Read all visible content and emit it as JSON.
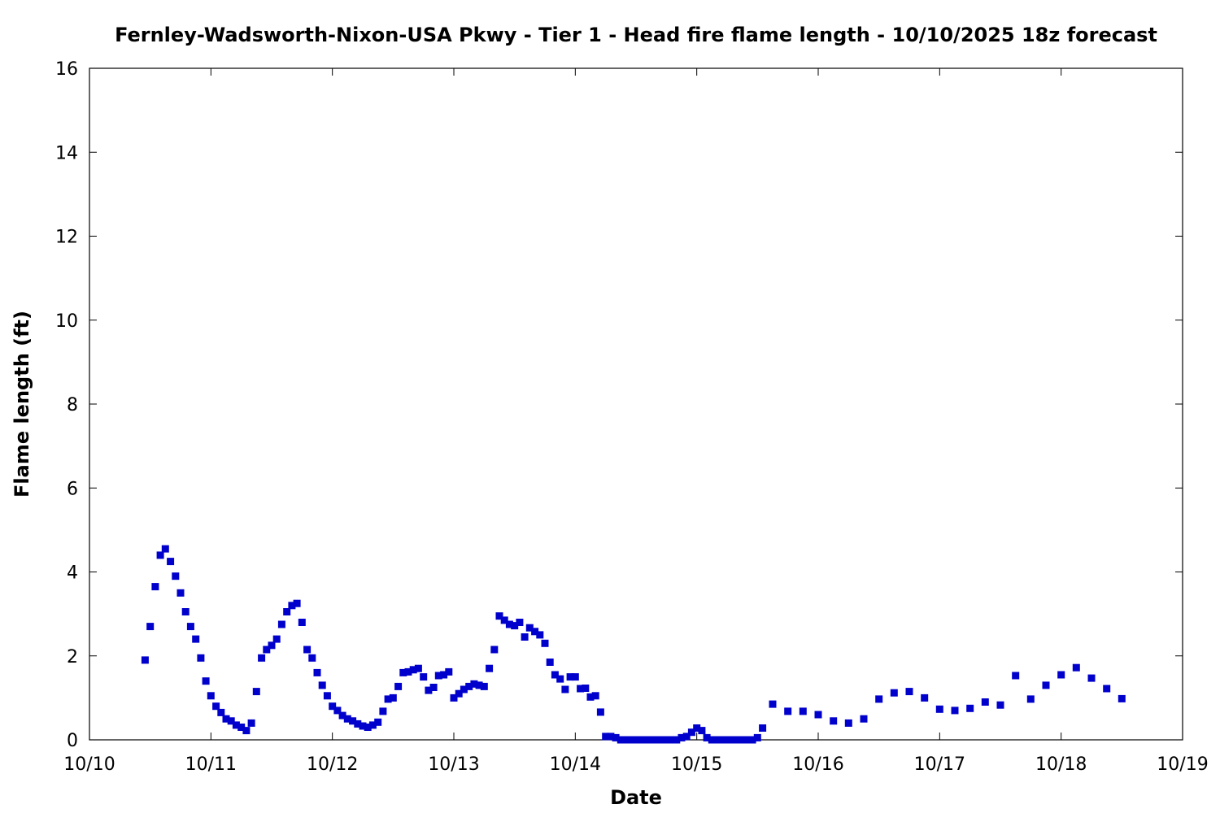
{
  "chart_data": {
    "type": "scatter",
    "title": "Fernley-Wadsworth-Nixon-USA Pkwy - Tier 1 - Head fire flame length - 10/10/2025 18z forecast",
    "xlabel": "Date",
    "ylabel": "Flame length (ft)",
    "xlim": [
      "2025-10-10T00:00",
      "2025-10-19T00:00"
    ],
    "ylim": [
      0,
      16
    ],
    "x_ticks": [
      "10/10",
      "10/11",
      "10/12",
      "10/13",
      "10/14",
      "10/15",
      "10/16",
      "10/17",
      "10/18",
      "10/19"
    ],
    "y_ticks": [
      "0",
      "2",
      "4",
      "6",
      "8",
      "10",
      "12",
      "14",
      "16"
    ],
    "grid": false,
    "marker_color": "#0000cc",
    "series": [
      {
        "points": [
          [
            "2025-10-10T11:00",
            1.9
          ],
          [
            "2025-10-10T12:00",
            2.7
          ],
          [
            "2025-10-10T13:00",
            3.65
          ],
          [
            "2025-10-10T14:00",
            4.4
          ],
          [
            "2025-10-10T15:00",
            4.55
          ],
          [
            "2025-10-10T16:00",
            4.25
          ],
          [
            "2025-10-10T17:00",
            3.9
          ],
          [
            "2025-10-10T18:00",
            3.5
          ],
          [
            "2025-10-10T19:00",
            3.05
          ],
          [
            "2025-10-10T20:00",
            2.7
          ],
          [
            "2025-10-10T21:00",
            2.4
          ],
          [
            "2025-10-10T22:00",
            1.95
          ],
          [
            "2025-10-10T23:00",
            1.4
          ],
          [
            "2025-10-11T00:00",
            1.05
          ],
          [
            "2025-10-11T01:00",
            0.8
          ],
          [
            "2025-10-11T02:00",
            0.65
          ],
          [
            "2025-10-11T03:00",
            0.5
          ],
          [
            "2025-10-11T04:00",
            0.45
          ],
          [
            "2025-10-11T05:00",
            0.35
          ],
          [
            "2025-10-11T06:00",
            0.3
          ],
          [
            "2025-10-11T07:00",
            0.22
          ],
          [
            "2025-10-11T08:00",
            0.4
          ],
          [
            "2025-10-11T09:00",
            1.15
          ],
          [
            "2025-10-11T10:00",
            1.95
          ],
          [
            "2025-10-11T11:00",
            2.15
          ],
          [
            "2025-10-11T12:00",
            2.25
          ],
          [
            "2025-10-11T13:00",
            2.4
          ],
          [
            "2025-10-11T14:00",
            2.75
          ],
          [
            "2025-10-11T15:00",
            3.05
          ],
          [
            "2025-10-11T16:00",
            3.2
          ],
          [
            "2025-10-11T17:00",
            3.25
          ],
          [
            "2025-10-11T18:00",
            2.8
          ],
          [
            "2025-10-11T19:00",
            2.15
          ],
          [
            "2025-10-11T20:00",
            1.95
          ],
          [
            "2025-10-11T21:00",
            1.6
          ],
          [
            "2025-10-11T22:00",
            1.3
          ],
          [
            "2025-10-11T23:00",
            1.05
          ],
          [
            "2025-10-12T00:00",
            0.8
          ],
          [
            "2025-10-12T01:00",
            0.7
          ],
          [
            "2025-10-12T02:00",
            0.58
          ],
          [
            "2025-10-12T03:00",
            0.5
          ],
          [
            "2025-10-12T04:00",
            0.45
          ],
          [
            "2025-10-12T05:00",
            0.38
          ],
          [
            "2025-10-12T06:00",
            0.33
          ],
          [
            "2025-10-12T07:00",
            0.3
          ],
          [
            "2025-10-12T08:00",
            0.35
          ],
          [
            "2025-10-12T09:00",
            0.42
          ],
          [
            "2025-10-12T10:00",
            0.68
          ],
          [
            "2025-10-12T11:00",
            0.97
          ],
          [
            "2025-10-12T12:00",
            1.0
          ],
          [
            "2025-10-12T13:00",
            1.27
          ],
          [
            "2025-10-12T14:00",
            1.6
          ],
          [
            "2025-10-12T15:00",
            1.62
          ],
          [
            "2025-10-12T16:00",
            1.67
          ],
          [
            "2025-10-12T17:00",
            1.7
          ],
          [
            "2025-10-12T18:00",
            1.5
          ],
          [
            "2025-10-12T19:00",
            1.18
          ],
          [
            "2025-10-12T20:00",
            1.25
          ],
          [
            "2025-10-12T21:00",
            1.53
          ],
          [
            "2025-10-12T22:00",
            1.55
          ],
          [
            "2025-10-12T23:00",
            1.62
          ],
          [
            "2025-10-13T00:00",
            1.0
          ],
          [
            "2025-10-13T01:00",
            1.1
          ],
          [
            "2025-10-13T02:00",
            1.2
          ],
          [
            "2025-10-13T03:00",
            1.27
          ],
          [
            "2025-10-13T04:00",
            1.33
          ],
          [
            "2025-10-13T05:00",
            1.3
          ],
          [
            "2025-10-13T06:00",
            1.27
          ],
          [
            "2025-10-13T07:00",
            1.7
          ],
          [
            "2025-10-13T08:00",
            2.15
          ],
          [
            "2025-10-13T09:00",
            2.95
          ],
          [
            "2025-10-13T10:00",
            2.85
          ],
          [
            "2025-10-13T11:00",
            2.75
          ],
          [
            "2025-10-13T12:00",
            2.72
          ],
          [
            "2025-10-13T13:00",
            2.8
          ],
          [
            "2025-10-13T14:00",
            2.45
          ],
          [
            "2025-10-13T15:00",
            2.67
          ],
          [
            "2025-10-13T16:00",
            2.58
          ],
          [
            "2025-10-13T17:00",
            2.5
          ],
          [
            "2025-10-13T18:00",
            2.3
          ],
          [
            "2025-10-13T19:00",
            1.85
          ],
          [
            "2025-10-13T20:00",
            1.55
          ],
          [
            "2025-10-13T21:00",
            1.45
          ],
          [
            "2025-10-13T22:00",
            1.2
          ],
          [
            "2025-10-13T23:00",
            1.5
          ],
          [
            "2025-10-14T00:00",
            1.5
          ],
          [
            "2025-10-14T01:00",
            1.22
          ],
          [
            "2025-10-14T02:00",
            1.23
          ],
          [
            "2025-10-14T03:00",
            1.02
          ],
          [
            "2025-10-14T04:00",
            1.05
          ],
          [
            "2025-10-14T05:00",
            0.66
          ],
          [
            "2025-10-14T06:00",
            0.08
          ],
          [
            "2025-10-14T07:00",
            0.08
          ],
          [
            "2025-10-14T08:00",
            0.05
          ],
          [
            "2025-10-14T09:00",
            0.0
          ],
          [
            "2025-10-14T10:00",
            0.0
          ],
          [
            "2025-10-14T11:00",
            0.0
          ],
          [
            "2025-10-14T12:00",
            0.0
          ],
          [
            "2025-10-14T13:00",
            0.0
          ],
          [
            "2025-10-14T14:00",
            0.0
          ],
          [
            "2025-10-14T15:00",
            0.0
          ],
          [
            "2025-10-14T16:00",
            0.0
          ],
          [
            "2025-10-14T17:00",
            0.0
          ],
          [
            "2025-10-14T18:00",
            0.0
          ],
          [
            "2025-10-14T19:00",
            0.0
          ],
          [
            "2025-10-14T20:00",
            0.0
          ],
          [
            "2025-10-14T21:00",
            0.05
          ],
          [
            "2025-10-14T22:00",
            0.08
          ],
          [
            "2025-10-14T23:00",
            0.18
          ],
          [
            "2025-10-15T00:00",
            0.28
          ],
          [
            "2025-10-15T01:00",
            0.22
          ],
          [
            "2025-10-15T02:00",
            0.05
          ],
          [
            "2025-10-15T03:00",
            0.0
          ],
          [
            "2025-10-15T04:00",
            0.0
          ],
          [
            "2025-10-15T05:00",
            0.0
          ],
          [
            "2025-10-15T06:00",
            0.0
          ],
          [
            "2025-10-15T07:00",
            0.0
          ],
          [
            "2025-10-15T08:00",
            0.0
          ],
          [
            "2025-10-15T09:00",
            0.0
          ],
          [
            "2025-10-15T10:00",
            0.0
          ],
          [
            "2025-10-15T11:00",
            0.0
          ],
          [
            "2025-10-15T12:00",
            0.05
          ],
          [
            "2025-10-15T13:00",
            0.28
          ],
          [
            "2025-10-15T15:00",
            0.85
          ],
          [
            "2025-10-15T18:00",
            0.68
          ],
          [
            "2025-10-15T21:00",
            0.68
          ],
          [
            "2025-10-16T00:00",
            0.6
          ],
          [
            "2025-10-16T03:00",
            0.45
          ],
          [
            "2025-10-16T06:00",
            0.4
          ],
          [
            "2025-10-16T09:00",
            0.5
          ],
          [
            "2025-10-16T12:00",
            0.97
          ],
          [
            "2025-10-16T15:00",
            1.12
          ],
          [
            "2025-10-16T18:00",
            1.15
          ],
          [
            "2025-10-16T21:00",
            1.0
          ],
          [
            "2025-10-17T00:00",
            0.73
          ],
          [
            "2025-10-17T03:00",
            0.7
          ],
          [
            "2025-10-17T06:00",
            0.75
          ],
          [
            "2025-10-17T09:00",
            0.9
          ],
          [
            "2025-10-17T12:00",
            0.83
          ],
          [
            "2025-10-17T15:00",
            1.53
          ],
          [
            "2025-10-17T18:00",
            0.97
          ],
          [
            "2025-10-17T21:00",
            1.3
          ],
          [
            "2025-10-18T00:00",
            1.55
          ],
          [
            "2025-10-18T03:00",
            1.72
          ],
          [
            "2025-10-18T06:00",
            1.47
          ],
          [
            "2025-10-18T09:00",
            1.22
          ],
          [
            "2025-10-18T12:00",
            0.98
          ]
        ]
      }
    ]
  }
}
